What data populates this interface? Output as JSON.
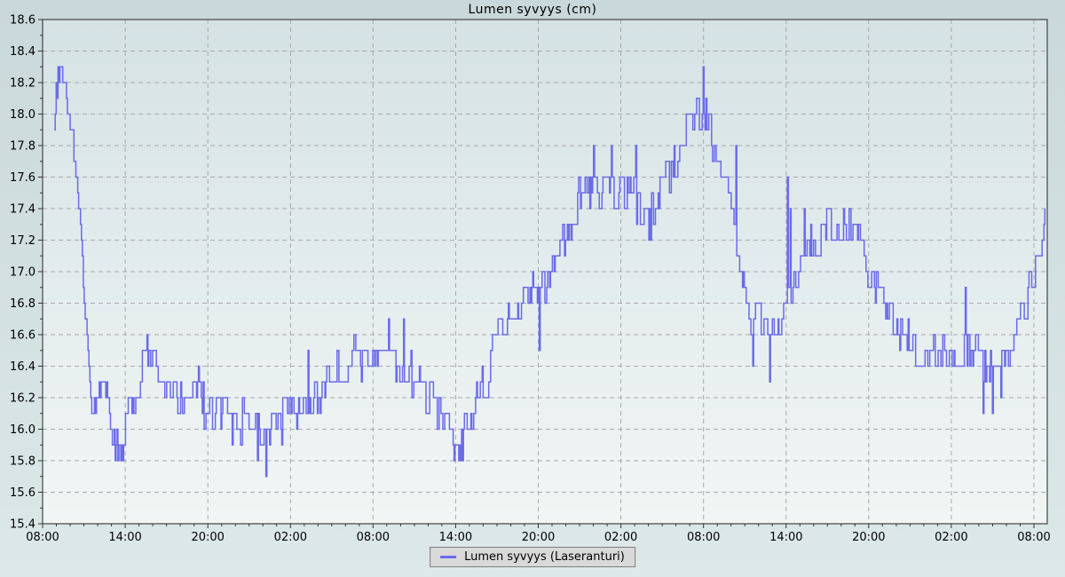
{
  "chart_data": {
    "type": "line",
    "title": "Lumen syvyys (cm)",
    "xlabel": "",
    "ylabel": "",
    "ylim": [
      15.4,
      18.6
    ],
    "y_tick_step": 0.2,
    "y_minor_step": 0.1,
    "grid": true,
    "legend_position": "bottom-center",
    "x_tick_labels": [
      "08:00",
      "14:00",
      "20:00",
      "02:00",
      "08:00",
      "14:00",
      "20:00",
      "02:00",
      "08:00",
      "14:00",
      "20:00",
      "02:00",
      "08:00"
    ],
    "x_tick_interval_hours": 6,
    "x_minor_interval_hours": 1,
    "x_total_hours": 73,
    "series": [
      {
        "name": "Lumen syvyys (Laseranturi)",
        "color": "#6b6be8",
        "start_hour": 0.85,
        "end_hour": 72.85,
        "sample_step_hours": 0.068,
        "noise_amplitude": 0.12,
        "noise_hold_probability": 0.52,
        "quantize_step": 0.1,
        "random_seed": 7,
        "trend_points": [
          [
            0.85,
            18.0
          ],
          [
            1.0,
            18.15
          ],
          [
            1.2,
            18.2
          ],
          [
            1.45,
            18.2
          ],
          [
            1.7,
            18.15
          ],
          [
            1.95,
            18.05
          ],
          [
            2.2,
            17.8
          ],
          [
            2.5,
            17.5
          ],
          [
            2.8,
            17.15
          ],
          [
            3.1,
            16.75
          ],
          [
            3.35,
            16.45
          ],
          [
            3.6,
            16.15
          ],
          [
            3.85,
            16.05
          ],
          [
            4.1,
            16.2
          ],
          [
            4.4,
            16.25
          ],
          [
            4.7,
            16.15
          ],
          [
            5.0,
            16.0
          ],
          [
            5.3,
            15.88
          ],
          [
            5.7,
            15.88
          ],
          [
            6.0,
            16.0
          ],
          [
            6.5,
            16.15
          ],
          [
            7.0,
            16.3
          ],
          [
            7.4,
            16.42
          ],
          [
            7.8,
            16.45
          ],
          [
            8.2,
            16.4
          ],
          [
            8.6,
            16.3
          ],
          [
            9.0,
            16.22
          ],
          [
            9.5,
            16.18
          ],
          [
            10.0,
            16.15
          ],
          [
            10.5,
            16.2
          ],
          [
            11.0,
            16.22
          ],
          [
            11.5,
            16.18
          ],
          [
            12.0,
            16.15
          ],
          [
            12.5,
            16.1
          ],
          [
            13.0,
            16.12
          ],
          [
            13.5,
            16.08
          ],
          [
            14.0,
            16.1
          ],
          [
            14.5,
            16.05
          ],
          [
            15.0,
            16.08
          ],
          [
            15.5,
            16.02
          ],
          [
            16.0,
            15.98
          ],
          [
            16.5,
            16.02
          ],
          [
            17.0,
            16.08
          ],
          [
            17.5,
            16.05
          ],
          [
            18.0,
            16.1
          ],
          [
            18.5,
            16.08
          ],
          [
            19.0,
            16.12
          ],
          [
            19.5,
            16.18
          ],
          [
            20.0,
            16.25
          ],
          [
            20.5,
            16.3
          ],
          [
            21.0,
            16.35
          ],
          [
            21.5,
            16.4
          ],
          [
            22.0,
            16.45
          ],
          [
            22.5,
            16.45
          ],
          [
            23.0,
            16.42
          ],
          [
            23.5,
            16.45
          ],
          [
            24.0,
            16.45
          ],
          [
            24.5,
            16.42
          ],
          [
            25.0,
            16.45
          ],
          [
            25.5,
            16.4
          ],
          [
            26.0,
            16.42
          ],
          [
            26.5,
            16.38
          ],
          [
            27.0,
            16.35
          ],
          [
            27.5,
            16.3
          ],
          [
            28.0,
            16.2
          ],
          [
            28.5,
            16.15
          ],
          [
            29.0,
            16.1
          ],
          [
            29.4,
            16.0
          ],
          [
            29.8,
            15.88
          ],
          [
            30.3,
            15.88
          ],
          [
            30.7,
            16.0
          ],
          [
            31.1,
            16.1
          ],
          [
            31.5,
            16.2
          ],
          [
            32.0,
            16.3
          ],
          [
            32.5,
            16.4
          ],
          [
            33.0,
            16.55
          ],
          [
            33.5,
            16.65
          ],
          [
            34.0,
            16.75
          ],
          [
            34.5,
            16.8
          ],
          [
            35.0,
            16.85
          ],
          [
            35.5,
            16.85
          ],
          [
            36.0,
            16.85
          ],
          [
            36.5,
            16.92
          ],
          [
            37.0,
            17.0
          ],
          [
            37.5,
            17.15
          ],
          [
            38.0,
            17.25
          ],
          [
            38.5,
            17.35
          ],
          [
            39.0,
            17.45
          ],
          [
            39.5,
            17.5
          ],
          [
            40.0,
            17.52
          ],
          [
            40.5,
            17.5
          ],
          [
            41.0,
            17.55
          ],
          [
            41.5,
            17.5
          ],
          [
            42.0,
            17.55
          ],
          [
            42.5,
            17.5
          ],
          [
            43.0,
            17.45
          ],
          [
            43.5,
            17.35
          ],
          [
            44.0,
            17.3
          ],
          [
            44.5,
            17.42
          ],
          [
            45.0,
            17.55
          ],
          [
            45.5,
            17.6
          ],
          [
            46.0,
            17.7
          ],
          [
            46.5,
            17.8
          ],
          [
            47.0,
            17.9
          ],
          [
            47.5,
            17.95
          ],
          [
            48.0,
            18.0
          ],
          [
            48.4,
            17.92
          ],
          [
            48.8,
            17.82
          ],
          [
            49.2,
            17.72
          ],
          [
            49.6,
            17.58
          ],
          [
            50.0,
            17.38
          ],
          [
            50.5,
            17.05
          ],
          [
            51.0,
            16.85
          ],
          [
            51.5,
            16.7
          ],
          [
            52.0,
            16.72
          ],
          [
            52.5,
            16.7
          ],
          [
            53.0,
            16.65
          ],
          [
            53.5,
            16.68
          ],
          [
            54.0,
            16.8
          ],
          [
            54.5,
            16.95
          ],
          [
            55.0,
            17.05
          ],
          [
            55.5,
            17.1
          ],
          [
            56.0,
            17.18
          ],
          [
            56.5,
            17.22
          ],
          [
            57.0,
            17.25
          ],
          [
            57.5,
            17.28
          ],
          [
            58.0,
            17.25
          ],
          [
            58.5,
            17.28
          ],
          [
            59.0,
            17.22
          ],
          [
            59.5,
            17.12
          ],
          [
            60.0,
            17.0
          ],
          [
            60.5,
            16.9
          ],
          [
            61.0,
            16.8
          ],
          [
            61.5,
            16.7
          ],
          [
            62.0,
            16.65
          ],
          [
            62.5,
            16.6
          ],
          [
            63.0,
            16.55
          ],
          [
            63.5,
            16.5
          ],
          [
            64.0,
            16.55
          ],
          [
            64.5,
            16.5
          ],
          [
            65.0,
            16.5
          ],
          [
            65.5,
            16.45
          ],
          [
            66.0,
            16.5
          ],
          [
            66.5,
            16.45
          ],
          [
            67.0,
            16.5
          ],
          [
            67.5,
            16.45
          ],
          [
            68.0,
            16.48
          ],
          [
            68.5,
            16.4
          ],
          [
            69.0,
            16.42
          ],
          [
            69.5,
            16.4
          ],
          [
            70.0,
            16.48
          ],
          [
            70.4,
            16.55
          ],
          [
            70.8,
            16.62
          ],
          [
            71.2,
            16.72
          ],
          [
            71.6,
            16.85
          ],
          [
            71.9,
            16.95
          ],
          [
            72.2,
            17.05
          ],
          [
            72.5,
            17.15
          ],
          [
            72.7,
            17.28
          ],
          [
            72.85,
            17.4
          ]
        ],
        "spikes": [
          [
            1.1,
            18.25
          ],
          [
            1.25,
            18.3
          ],
          [
            5.5,
            15.8
          ],
          [
            7.6,
            16.6
          ],
          [
            11.3,
            16.45
          ],
          [
            13.8,
            15.9
          ],
          [
            15.6,
            15.8
          ],
          [
            16.25,
            15.7
          ],
          [
            17.4,
            15.9
          ],
          [
            19.3,
            16.5
          ],
          [
            25.1,
            16.7
          ],
          [
            26.2,
            16.7
          ],
          [
            29.9,
            15.8
          ],
          [
            30.25,
            15.8
          ],
          [
            36.1,
            16.5
          ],
          [
            40.0,
            17.8
          ],
          [
            41.3,
            17.8
          ],
          [
            43.1,
            17.8
          ],
          [
            44.0,
            17.2
          ],
          [
            47.95,
            18.3
          ],
          [
            48.15,
            18.1
          ],
          [
            50.35,
            17.8
          ],
          [
            51.6,
            16.35
          ],
          [
            52.8,
            16.3
          ],
          [
            54.1,
            17.6
          ],
          [
            54.3,
            17.45
          ],
          [
            55.3,
            17.4
          ],
          [
            67.0,
            16.85
          ],
          [
            68.3,
            16.15
          ],
          [
            69.0,
            16.1
          ],
          [
            69.6,
            16.2
          ],
          [
            72.8,
            17.4
          ]
        ]
      }
    ]
  },
  "legend": {
    "label": "Lumen syvyys (Laseranturi)"
  },
  "colors": {
    "background_top": "#c9d8da",
    "background_bottom": "#dde8e8",
    "plot_top": "#d5e2e4",
    "plot_bottom": "#f1f6f5",
    "grid": "#a9a9a9",
    "border": "#444444",
    "tick": "#333333",
    "text": "#000000",
    "series": "#6b6be8",
    "legend_bg": "#d9d9d9",
    "legend_border": "#7f7f7f"
  }
}
